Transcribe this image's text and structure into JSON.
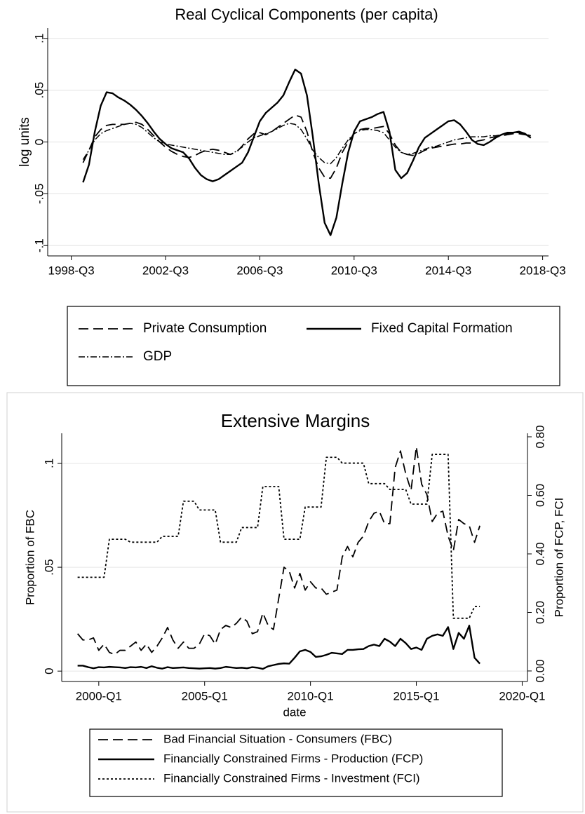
{
  "chart_data": [
    {
      "type": "line",
      "title": "Real Cyclical Components (per capita)",
      "ylabel": "log units",
      "x": [
        "1999-Q1",
        "1999-Q2",
        "1999-Q3",
        "1999-Q4",
        "2000-Q1",
        "2000-Q2",
        "2000-Q3",
        "2000-Q4",
        "2001-Q1",
        "2001-Q2",
        "2001-Q3",
        "2001-Q4",
        "2002-Q1",
        "2002-Q2",
        "2002-Q3",
        "2002-Q4",
        "2003-Q1",
        "2003-Q2",
        "2003-Q3",
        "2003-Q4",
        "2004-Q1",
        "2004-Q2",
        "2004-Q3",
        "2004-Q4",
        "2005-Q1",
        "2005-Q2",
        "2005-Q3",
        "2005-Q4",
        "2006-Q1",
        "2006-Q2",
        "2006-Q3",
        "2006-Q4",
        "2007-Q1",
        "2007-Q2",
        "2007-Q3",
        "2007-Q4",
        "2008-Q1",
        "2008-Q2",
        "2008-Q3",
        "2008-Q4",
        "2009-Q1",
        "2009-Q2",
        "2009-Q3",
        "2009-Q4",
        "2010-Q1",
        "2010-Q2",
        "2010-Q3",
        "2010-Q4",
        "2011-Q1",
        "2011-Q2",
        "2011-Q3",
        "2011-Q4",
        "2012-Q1",
        "2012-Q2",
        "2012-Q3",
        "2012-Q4",
        "2013-Q1",
        "2013-Q2",
        "2013-Q3",
        "2013-Q4",
        "2014-Q1",
        "2014-Q2",
        "2014-Q3",
        "2014-Q4",
        "2015-Q1",
        "2015-Q2",
        "2015-Q3",
        "2015-Q4",
        "2016-Q1",
        "2016-Q2",
        "2016-Q3",
        "2016-Q4",
        "2017-Q1",
        "2017-Q2",
        "2017-Q3",
        "2017-Q4",
        "2018-Q1"
      ],
      "xlim": [
        "1997-Q3",
        "2018-Q4"
      ],
      "xticks": [
        "1998-Q3",
        "2002-Q3",
        "2006-Q3",
        "2010-Q3",
        "2014-Q3",
        "2018-Q3"
      ],
      "ylim": [
        -0.11,
        0.11
      ],
      "yticks": [
        {
          "value": -0.1,
          "label": "-.1"
        },
        {
          "value": -0.05,
          "label": "-.05"
        },
        0,
        {
          "value": 0.05,
          "label": ".05"
        },
        {
          "value": 0.1,
          "label": ".1"
        }
      ],
      "grid": true,
      "series": [
        {
          "name": "Private Consumption",
          "color": "#000000",
          "style": "dash",
          "values": [
            -0.02,
            -0.008,
            0.005,
            0.012,
            0.016,
            0.017,
            0.017,
            0.017,
            0.018,
            0.019,
            0.017,
            0.012,
            0.006,
            0.0,
            -0.005,
            -0.009,
            -0.012,
            -0.014,
            -0.015,
            -0.013,
            -0.01,
            -0.008,
            -0.007,
            -0.008,
            -0.01,
            -0.012,
            -0.01,
            -0.004,
            0.003,
            0.008,
            0.009,
            0.007,
            0.01,
            0.014,
            0.018,
            0.022,
            0.026,
            0.024,
            0.01,
            -0.01,
            -0.025,
            -0.034,
            -0.035,
            -0.025,
            -0.01,
            0.0,
            0.008,
            0.012,
            0.013,
            0.013,
            0.014,
            0.015,
            0.008,
            -0.003,
            -0.01,
            -0.012,
            -0.013,
            -0.011,
            -0.008,
            -0.006,
            -0.005,
            -0.004,
            -0.003,
            -0.002,
            -0.002,
            -0.001,
            -0.001,
            0.001,
            0.002,
            0.004,
            0.005,
            0.006,
            0.007,
            0.008,
            0.008,
            0.007,
            0.006
          ]
        },
        {
          "name": "Fixed Capital Formation",
          "color": "#000000",
          "style": "solid",
          "values": [
            -0.039,
            -0.022,
            0.01,
            0.035,
            0.048,
            0.047,
            0.043,
            0.04,
            0.036,
            0.031,
            0.025,
            0.018,
            0.01,
            0.003,
            -0.002,
            -0.006,
            -0.008,
            -0.01,
            -0.016,
            -0.025,
            -0.032,
            -0.036,
            -0.038,
            -0.036,
            -0.032,
            -0.028,
            -0.024,
            -0.02,
            -0.01,
            0.005,
            0.02,
            0.028,
            0.033,
            0.038,
            0.045,
            0.058,
            0.07,
            0.066,
            0.045,
            0.005,
            -0.04,
            -0.078,
            -0.09,
            -0.073,
            -0.04,
            -0.01,
            0.01,
            0.02,
            0.022,
            0.024,
            0.027,
            0.029,
            0.01,
            -0.027,
            -0.035,
            -0.03,
            -0.018,
            -0.005,
            0.004,
            0.008,
            0.012,
            0.016,
            0.02,
            0.021,
            0.017,
            0.01,
            0.002,
            -0.002,
            -0.003,
            0.0,
            0.004,
            0.007,
            0.009,
            0.009,
            0.01,
            0.008,
            0.004
          ]
        },
        {
          "name": "GDP",
          "color": "#000000",
          "style": "dashdot",
          "values": [
            -0.017,
            -0.008,
            0.002,
            0.008,
            0.011,
            0.013,
            0.015,
            0.017,
            0.018,
            0.017,
            0.014,
            0.009,
            0.004,
            0.0,
            -0.002,
            -0.003,
            -0.004,
            -0.005,
            -0.006,
            -0.007,
            -0.008,
            -0.009,
            -0.01,
            -0.011,
            -0.012,
            -0.012,
            -0.009,
            -0.005,
            0.0,
            0.004,
            0.006,
            0.008,
            0.01,
            0.013,
            0.016,
            0.018,
            0.017,
            0.012,
            0.003,
            -0.008,
            -0.015,
            -0.02,
            -0.021,
            -0.015,
            -0.006,
            0.002,
            0.008,
            0.011,
            0.012,
            0.012,
            0.011,
            0.009,
            0.002,
            -0.005,
            -0.01,
            -0.012,
            -0.011,
            -0.009,
            -0.007,
            -0.005,
            -0.004,
            -0.002,
            0.0,
            0.002,
            0.003,
            0.004,
            0.005,
            0.005,
            0.005,
            0.006,
            0.006,
            0.007,
            0.008,
            0.009,
            0.009,
            0.008,
            0.006
          ]
        }
      ]
    },
    {
      "type": "line",
      "title": "Extensive Margins",
      "xlabel": "date",
      "ylabel": "Proportion of FBC",
      "y2label": "Proportion of FCP, FCI",
      "x": [
        "1999-Q1",
        "1999-Q2",
        "1999-Q3",
        "1999-Q4",
        "2000-Q1",
        "2000-Q2",
        "2000-Q3",
        "2000-Q4",
        "2001-Q1",
        "2001-Q2",
        "2001-Q3",
        "2001-Q4",
        "2002-Q1",
        "2002-Q2",
        "2002-Q3",
        "2002-Q4",
        "2003-Q1",
        "2003-Q2",
        "2003-Q3",
        "2003-Q4",
        "2004-Q1",
        "2004-Q2",
        "2004-Q3",
        "2004-Q4",
        "2005-Q1",
        "2005-Q2",
        "2005-Q3",
        "2005-Q4",
        "2006-Q1",
        "2006-Q2",
        "2006-Q3",
        "2006-Q4",
        "2007-Q1",
        "2007-Q2",
        "2007-Q3",
        "2007-Q4",
        "2008-Q1",
        "2008-Q2",
        "2008-Q3",
        "2008-Q4",
        "2009-Q1",
        "2009-Q2",
        "2009-Q3",
        "2009-Q4",
        "2010-Q1",
        "2010-Q2",
        "2010-Q3",
        "2010-Q4",
        "2011-Q1",
        "2011-Q2",
        "2011-Q3",
        "2011-Q4",
        "2012-Q1",
        "2012-Q2",
        "2012-Q3",
        "2012-Q4",
        "2013-Q1",
        "2013-Q2",
        "2013-Q3",
        "2013-Q4",
        "2014-Q1",
        "2014-Q2",
        "2014-Q3",
        "2014-Q4",
        "2015-Q1",
        "2015-Q2",
        "2015-Q3",
        "2015-Q4",
        "2016-Q1",
        "2016-Q2",
        "2016-Q3",
        "2016-Q4",
        "2017-Q1",
        "2017-Q2",
        "2017-Q3",
        "2017-Q4",
        "2018-Q1"
      ],
      "xlim": [
        "1998-Q2",
        "2020-Q2"
      ],
      "xticks": [
        "2000-Q1",
        "2005-Q1",
        "2010-Q1",
        "2015-Q1",
        "2020-Q1"
      ],
      "ylim": [
        -0.005,
        0.1145
      ],
      "yticks": [
        0,
        {
          "value": 0.05,
          "label": ".05"
        },
        {
          "value": 0.1,
          "label": ".1"
        }
      ],
      "y2lim": [
        -0.036,
        0.812
      ],
      "y2ticks": [
        {
          "value": 0,
          "label": "0.00"
        },
        {
          "value": 0.2,
          "label": "0.20"
        },
        {
          "value": 0.4,
          "label": "0.40"
        },
        {
          "value": 0.6,
          "label": "0.60"
        },
        {
          "value": 0.8,
          "label": "0.80"
        }
      ],
      "grid": true,
      "series": [
        {
          "name": "Bad Financial Situation - Consumers (FBC)",
          "color": "#000000",
          "style": "dash",
          "axis": "y",
          "values": [
            0.018,
            0.015,
            0.015,
            0.016,
            0.01,
            0.013,
            0.009,
            0.008,
            0.01,
            0.01,
            0.012,
            0.014,
            0.01,
            0.013,
            0.009,
            0.012,
            0.016,
            0.021,
            0.015,
            0.011,
            0.014,
            0.011,
            0.011,
            0.013,
            0.018,
            0.017,
            0.013,
            0.02,
            0.022,
            0.021,
            0.023,
            0.026,
            0.024,
            0.018,
            0.019,
            0.028,
            0.022,
            0.02,
            0.035,
            0.05,
            0.048,
            0.04,
            0.047,
            0.039,
            0.043,
            0.04,
            0.04,
            0.037,
            0.038,
            0.039,
            0.055,
            0.06,
            0.055,
            0.062,
            0.065,
            0.072,
            0.076,
            0.077,
            0.071,
            0.071,
            0.098,
            0.106,
            0.095,
            0.087,
            0.108,
            0.09,
            0.085,
            0.072,
            0.076,
            0.077,
            0.065,
            0.058,
            0.073,
            0.071,
            0.07,
            0.062,
            0.07
          ]
        },
        {
          "name": "Financially Constrained Firms - Production (FCP)",
          "color": "#000000",
          "style": "solid",
          "axis": "y2",
          "values": [
            0.018,
            0.018,
            0.013,
            0.009,
            0.013,
            0.012,
            0.014,
            0.013,
            0.012,
            0.01,
            0.013,
            0.012,
            0.014,
            0.01,
            0.016,
            0.011,
            0.008,
            0.013,
            0.01,
            0.011,
            0.012,
            0.01,
            0.009,
            0.008,
            0.009,
            0.01,
            0.008,
            0.01,
            0.014,
            0.012,
            0.01,
            0.011,
            0.009,
            0.013,
            0.011,
            0.007,
            0.016,
            0.02,
            0.024,
            0.026,
            0.025,
            0.045,
            0.067,
            0.072,
            0.065,
            0.048,
            0.05,
            0.055,
            0.062,
            0.06,
            0.058,
            0.072,
            0.072,
            0.074,
            0.075,
            0.085,
            0.09,
            0.085,
            0.11,
            0.1,
            0.085,
            0.11,
            0.095,
            0.075,
            0.08,
            0.072,
            0.11,
            0.12,
            0.125,
            0.12,
            0.15,
            0.075,
            0.13,
            0.11,
            0.155,
            0.045,
            0.025
          ]
        },
        {
          "name": "Financially Constrained Firms - Investment (FCI)",
          "color": "#000000",
          "style": "dot",
          "axis": "y2",
          "values": [
            0.32,
            0.32,
            0.32,
            0.32,
            0.32,
            0.32,
            0.45,
            0.45,
            0.45,
            0.45,
            0.44,
            0.44,
            0.44,
            0.44,
            0.44,
            0.44,
            0.46,
            0.46,
            0.46,
            0.46,
            0.58,
            0.58,
            0.58,
            0.55,
            0.55,
            0.55,
            0.55,
            0.44,
            0.44,
            0.44,
            0.44,
            0.49,
            0.49,
            0.49,
            0.49,
            0.63,
            0.63,
            0.63,
            0.63,
            0.45,
            0.45,
            0.45,
            0.45,
            0.56,
            0.56,
            0.56,
            0.56,
            0.73,
            0.73,
            0.73,
            0.71,
            0.71,
            0.71,
            0.71,
            0.71,
            0.64,
            0.64,
            0.64,
            0.64,
            0.62,
            0.62,
            0.62,
            0.62,
            0.57,
            0.57,
            0.57,
            0.57,
            0.74,
            0.74,
            0.74,
            0.74,
            0.18,
            0.18,
            0.18,
            0.18,
            0.22,
            0.22
          ]
        }
      ]
    }
  ]
}
